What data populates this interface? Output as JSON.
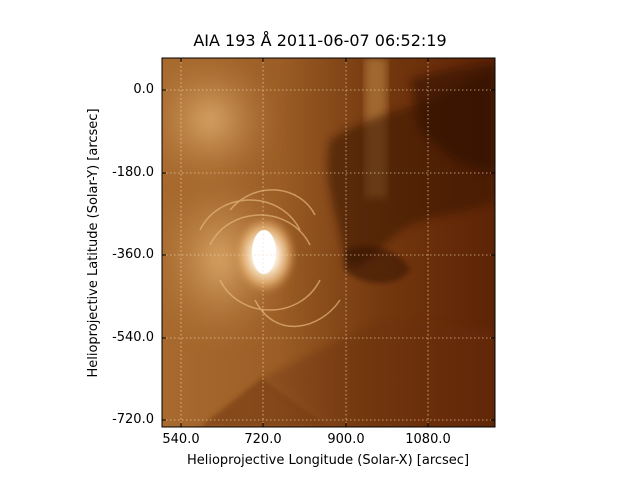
{
  "figure": {
    "title": "AIA 193 Å 2011-06-07 06:52:19",
    "xlabel": "Helioprojective Longitude (Solar-X) [arcsec]",
    "ylabel": "Helioprojective Latitude (Solar-Y) [arcsec]",
    "xticks": [
      "540.0",
      "720.0",
      "900.0",
      "1080.0"
    ],
    "yticks": [
      "0.0",
      "-180.0",
      "-360.0",
      "-540.0",
      "-720.0"
    ],
    "colormap": [
      "#0a0200",
      "#5a1e05",
      "#a35a1a",
      "#d9a25c",
      "#ffffff"
    ],
    "grid_color": "#f2d9b0"
  }
}
